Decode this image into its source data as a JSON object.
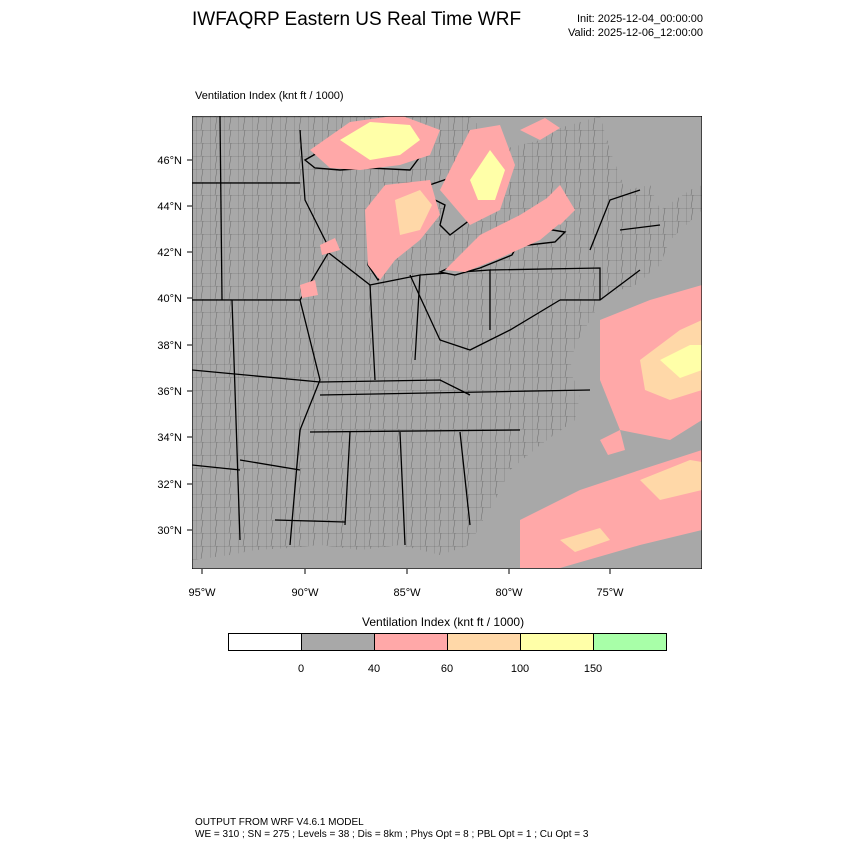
{
  "header": {
    "title": "IWFAQRP Eastern US Real Time WRF",
    "init": "Init: 2025-12-04_00:00:00",
    "valid": "Valid: 2025-12-06_12:00:00"
  },
  "field_label": "Ventilation Index   (knt ft / 1000)",
  "map": {
    "lat_labels": [
      "46°N",
      "44°N",
      "42°N",
      "40°N",
      "38°N",
      "36°N",
      "34°N",
      "32°N",
      "30°N"
    ],
    "lon_labels": [
      "95°W",
      "90°W",
      "85°W",
      "80°W",
      "75°W"
    ],
    "land_color": "#a8a8a8",
    "water_color": "#a8a8a8",
    "boundary_color": "#000000",
    "region": "Eastern United States with state and county boundaries"
  },
  "colorbar": {
    "title": "Ventilation Index  (knt ft / 1000)",
    "colors": [
      "#ffffff",
      "#a8a8a8",
      "#ffa8a8",
      "#ffd8a8",
      "#ffffa8",
      "#a8ffa8"
    ],
    "tick_labels": [
      "0",
      "40",
      "60",
      "100",
      "150"
    ]
  },
  "footer": {
    "line1": "OUTPUT FROM WRF V4.6.1 MODEL",
    "line2": "WE = 310 ; SN = 275 ; Levels = 38 ; Dis = 8km ; Phys Opt = 8 ; PBL Opt = 1 ; Cu Opt = 3"
  }
}
